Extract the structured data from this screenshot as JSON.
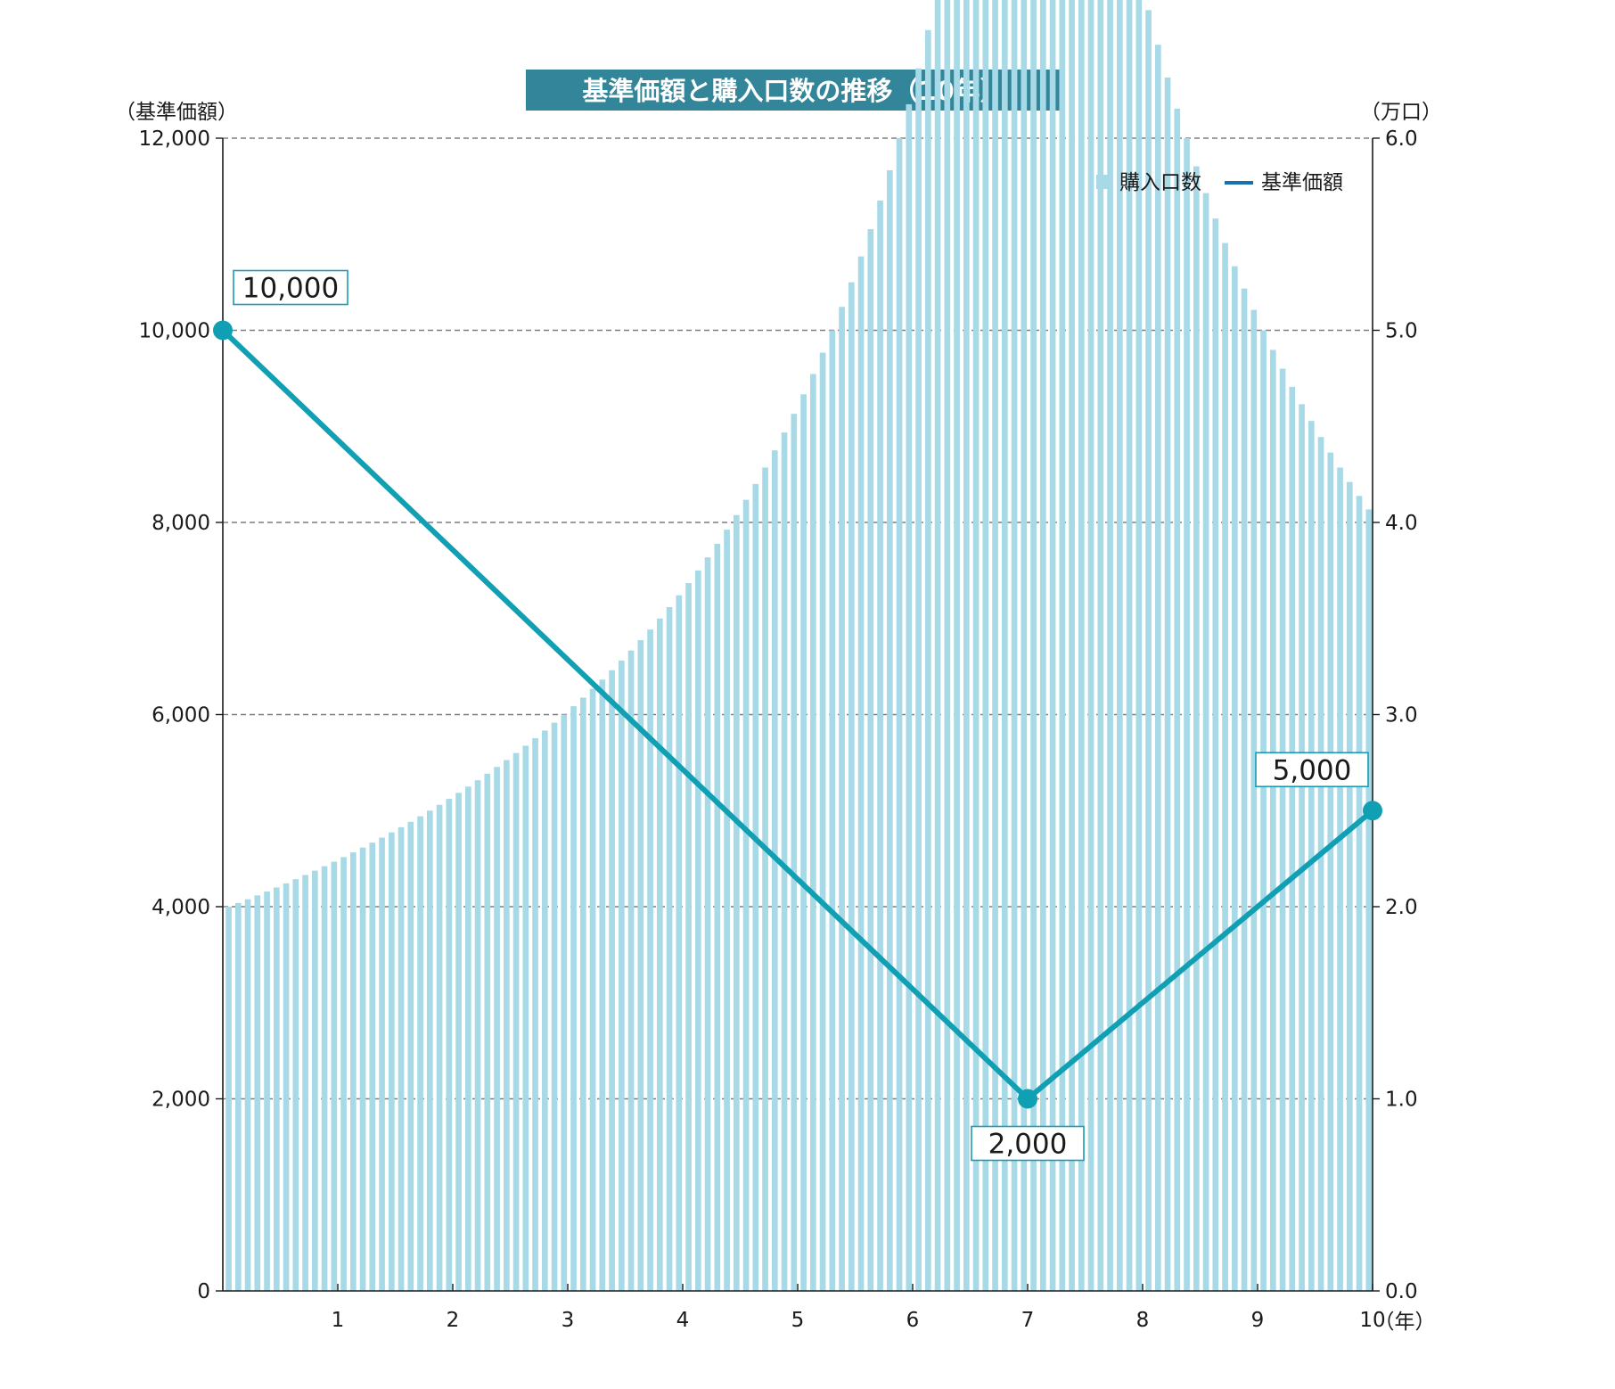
{
  "chart_data": {
    "type": "bar+line",
    "title": "基準価額と購入口数の推移（10年）",
    "left_axis": {
      "unit": "（基準価額）",
      "ylim": [
        0,
        12000
      ],
      "ticks": [
        0,
        2000,
        4000,
        6000,
        8000,
        10000,
        12000
      ],
      "tick_labels": [
        "0",
        "2,000",
        "4,000",
        "6,000",
        "8,000",
        "10,000",
        "12,000"
      ]
    },
    "right_axis": {
      "unit": "（万口）",
      "ylim": [
        0,
        6
      ],
      "ticks": [
        0,
        1,
        2,
        3,
        4,
        5,
        6
      ],
      "tick_labels": [
        "0.0",
        "1.0",
        "2.0",
        "3.0",
        "4.0",
        "5.0",
        "6.0"
      ]
    },
    "x_axis": {
      "unit": "（年）",
      "xlim": [
        0,
        10
      ],
      "ticks": [
        1,
        2,
        3,
        4,
        5,
        6,
        7,
        8,
        9,
        10
      ],
      "tick_labels": [
        "1",
        "2",
        "3",
        "4",
        "5",
        "6",
        "7",
        "8",
        "9",
        "10"
      ]
    },
    "grid": "dashed horizontal at major ticks",
    "legend_position": "top-right",
    "series": [
      {
        "name": "購入口数",
        "kind": "bar",
        "axis": "right",
        "unit": "万口",
        "frequency": "monthly",
        "description_of_points": "monthly purchase of 20,000 yen; units = 20000 / price",
        "x_start": 0,
        "x_end": 10,
        "count": 120
      },
      {
        "name": "基準価額",
        "kind": "line",
        "axis": "left",
        "points": [
          {
            "x": 0,
            "y": 10000,
            "label": "10,000"
          },
          {
            "x": 7,
            "y": 2000,
            "label": "2,000"
          },
          {
            "x": 10,
            "y": 5000,
            "label": "5,000"
          }
        ]
      }
    ],
    "colors": {
      "line": "#119fb4",
      "bar": "#a8d9e6",
      "title_bg": "#338699",
      "legend_line": "#1a6faf",
      "grid": "#7d7d7d",
      "callout_border": "#1a9bb3"
    }
  }
}
